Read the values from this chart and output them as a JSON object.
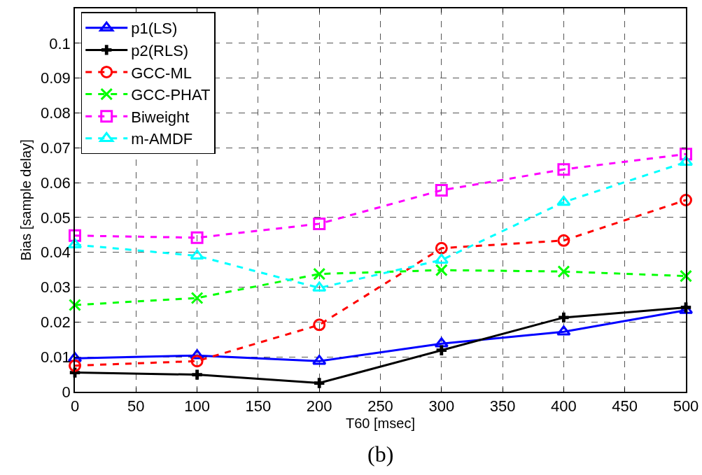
{
  "chart_data": {
    "type": "line",
    "xlabel": "T60 [msec]",
    "ylabel": "Bias [sample delay]",
    "annotations": [
      "(b)"
    ],
    "x": [
      0,
      100,
      200,
      300,
      400,
      500
    ],
    "series": [
      {
        "name": "p1(LS)",
        "color": "#0000ff",
        "marker": "triangle",
        "line_style": "solid",
        "values": [
          0.0096,
          0.0104,
          0.0088,
          0.0138,
          0.0172,
          0.0234
        ]
      },
      {
        "name": "p2(RLS)",
        "color": "#000000",
        "marker": "cross",
        "line_style": "solid",
        "values": [
          0.0055,
          0.0049,
          0.0025,
          0.0119,
          0.0213,
          0.0242
        ]
      },
      {
        "name": "GCC-ML",
        "color": "#ff0000",
        "marker": "circle",
        "line_style": "dashed",
        "values": [
          0.0075,
          0.0088,
          0.0192,
          0.0412,
          0.0434,
          0.055
        ]
      },
      {
        "name": "GCC-PHAT",
        "color": "#00ff00",
        "marker": "x",
        "line_style": "dashed",
        "values": [
          0.0249,
          0.0269,
          0.0338,
          0.0349,
          0.0345,
          0.0332
        ]
      },
      {
        "name": "Biweight",
        "color": "#ff00ff",
        "marker": "square",
        "line_style": "dashed",
        "values": [
          0.0448,
          0.0442,
          0.0482,
          0.0578,
          0.0638,
          0.0682
        ]
      },
      {
        "name": "m-AMDF",
        "color": "#00ffff",
        "marker": "triangle",
        "line_style": "dashed",
        "values": [
          0.0422,
          0.039,
          0.0298,
          0.0378,
          0.0544,
          0.0659
        ]
      }
    ],
    "xlim": [
      0,
      500
    ],
    "xticks": [
      0,
      50,
      100,
      150,
      200,
      250,
      300,
      350,
      400,
      450,
      500
    ],
    "ylim": [
      0,
      0.11
    ],
    "yticks": [
      0,
      0.01,
      0.02,
      0.03,
      0.04,
      0.05,
      0.06,
      0.07,
      0.08,
      0.09,
      0.1
    ],
    "grid": true,
    "legend": "top left"
  }
}
